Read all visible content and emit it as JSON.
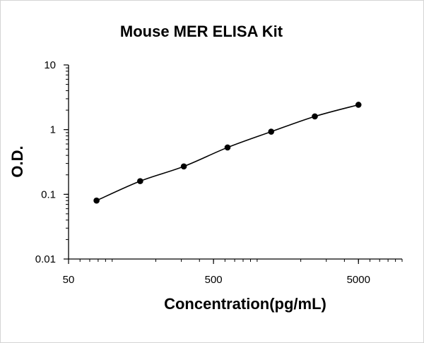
{
  "chart_data": {
    "type": "scatter",
    "title": "Mouse MER ELISA Kit",
    "xlabel": "Concentration(pg/mL)",
    "ylabel": "O.D.",
    "x_scale": "log",
    "y_scale": "log",
    "xlim": [
      50,
      10000
    ],
    "ylim": [
      0.01,
      10
    ],
    "x_ticks": [
      {
        "value": 50,
        "label": "50"
      },
      {
        "value": 500,
        "label": "500"
      },
      {
        "value": 5000,
        "label": "5000"
      }
    ],
    "y_ticks": [
      {
        "value": 0.01,
        "label": "0.01"
      },
      {
        "value": 0.1,
        "label": "0.1"
      },
      {
        "value": 1,
        "label": "1"
      },
      {
        "value": 10,
        "label": "10"
      }
    ],
    "grid": false,
    "series": [
      {
        "x": [
          78,
          156,
          312,
          625,
          1250,
          2500,
          5000
        ],
        "y": [
          0.08,
          0.16,
          0.27,
          0.53,
          0.93,
          1.6,
          2.42
        ],
        "marker_color": "#000000",
        "line_color": "#000000",
        "fit_curve": true
      }
    ]
  }
}
